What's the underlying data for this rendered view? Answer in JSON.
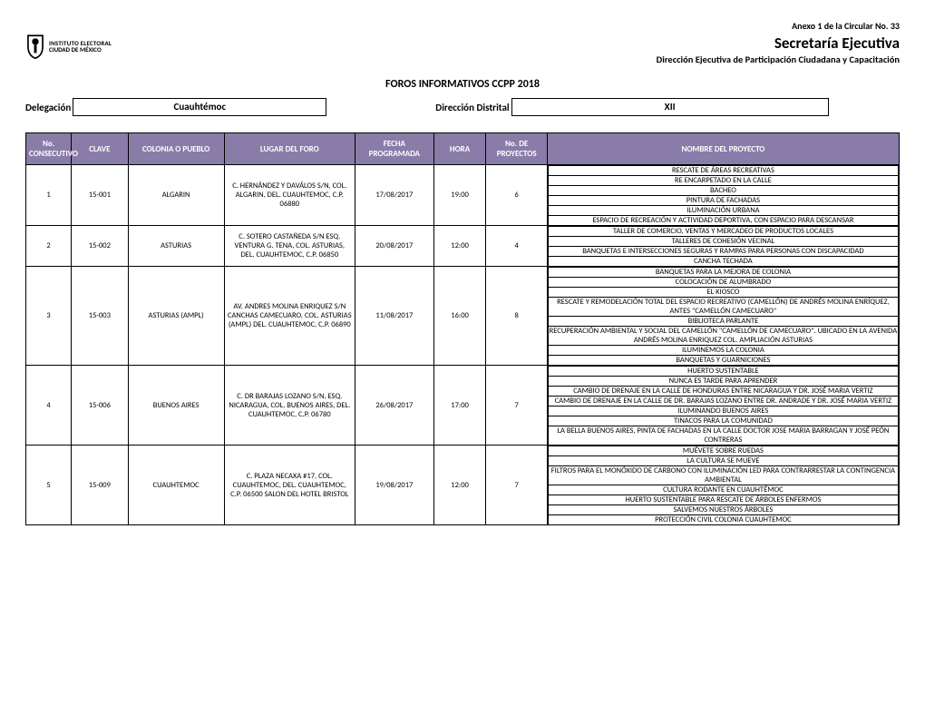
{
  "header": {
    "anexo": "Anexo 1 de la Circular No. 33",
    "secretaria": "Secretaría Ejecutiva",
    "direccion_sub": "Dirección Ejecutiva de Participación Ciudadana y Capacitación",
    "logo_line1": "INSTITUTO ELECTORAL",
    "logo_line2": "CIUDAD DE MÉXICO"
  },
  "titles": {
    "foros": "FOROS INFORMATIVOS CCPP 2018"
  },
  "meta": {
    "delegacion_label": "Delegación",
    "delegacion_value": "Cuauhtémoc",
    "distrito_label": "Dirección Distrital",
    "distrito_value": "XII"
  },
  "columns": {
    "no": "No. CONSECUTIVO",
    "clave": "CLAVE",
    "colonia": "COLONIA O PUEBLO",
    "lugar": "LUGAR DEL FORO",
    "fecha": "FECHA PROGRAMADA",
    "hora": "HORA",
    "nproy": "No. DE PROYECTOS",
    "proy": "NOMBRE DEL PROYECTO"
  },
  "rows": [
    {
      "no": "1",
      "clave": "15-001",
      "colonia": "ALGARIN",
      "lugar": "C. HERNÁNDEZ Y DAVÁLOS S/N, COL. ALGARIN, DEL. CUAUHTEMOC, C.P. 06880",
      "fecha": "17/08/2017",
      "hora": "19:00",
      "nproy": "6",
      "proyectos": [
        "RESCATE DE ÁREAS RECREATIVAS",
        "RE ENCARPETADO EN LA CALLE",
        "BACHEO",
        "PINTURA DE FACHADAS",
        "ILUMINACIÓN URBANA",
        "ESPACIO DE RECREACIÓN Y ACTIVIDAD DEPORTIVA, CON ESPACIO PARA DESCANSAR"
      ]
    },
    {
      "no": "2",
      "clave": "15-002",
      "colonia": "ASTURIAS",
      "lugar": "C. SOTERO CASTAÑEDA S/N ESQ. VENTURA G. TENA, COL. ASTURIAS, DEL. CUAUHTEMOC, C.P. 06850",
      "fecha": "20/08/2017",
      "hora": "12:00",
      "nproy": "4",
      "proyectos": [
        "TALLER DE COMERCIO, VENTAS Y MERCADEO DE PRODUCTOS LOCALES",
        "TALLERES DE COHESIÓN VECINAL",
        "BANQUETAS E INTERSECCIONES SEGURAS Y RAMPAS PARA PERSONAS CON DISCAPACIDAD",
        "CANCHA TECHADA"
      ]
    },
    {
      "no": "3",
      "clave": "15-003",
      "colonia": "ASTURIAS (AMPL)",
      "lugar": "AV. ANDRES MOLINA ENRIQUEZ  S/N CANCHAS CAMECUARO, COL. ASTURIAS (AMPL) DEL. CUAUHTEMOC, C.P. 06890",
      "fecha": "11/08/2017",
      "hora": "16:00",
      "nproy": "8",
      "proyectos": [
        "BANQUETAS PARA LA MEJORA DE COLONIA",
        "COLOCACIÓN DE ALUMBRADO",
        "EL KIOSCO",
        "RESCATE Y REMODELACIÓN TOTAL DEL ESPACIO RECREATIVO (CAMELLÓN) DE ANDRÉS MOLINA ENRÍQUEZ, ANTES \"CAMELLÓN CAMECUARO\"",
        "BIBLIOTECA PARLANTE",
        "RECUPERACIÓN AMBIENTAL Y SOCIAL DEL CAMELLÓN \"CAMELLÓN DE CAMECUARO\". UBICADO EN LA AVENIDA ANDRÉS MOLINA ENRIQUEZ COL. AMPLIACIÓN ASTURIAS",
        "ILUMINEMOS LA COLONIA",
        "BANQUETAS Y GUARNICIONES"
      ]
    },
    {
      "no": "4",
      "clave": "15-006",
      "colonia": "BUENOS AIRES",
      "lugar": "C. DR BARAJAS LOZANO S/N, ESQ. NICARAGUA, COL. BUENOS AIRES, DEL. CUAUHTEMOC, C.P. 06780",
      "fecha": "26/08/2017",
      "hora": "17:00",
      "nproy": "7",
      "proyectos": [
        "HUERTO SUSTENTABLE",
        "NUNCA ES TARDE PARA APRENDER",
        "CAMBIO DE DRENAJE EN LA CALLE DE HONDURAS ENTRE NICARAGUA Y DR. JOSÉ MARIA VERTIZ",
        "CAMBIO DE DRENAJE EN LA CALLE DE DR. BARAJAS LOZANO ENTRE DR. ANDRADE Y DR. JOSÉ MARIA VERTIZ",
        "ILUMINANDO BUENOS AIRES",
        "TINACOS PARA LA COMUNIDAD",
        "LA BELLA BUENOS AIRES, PINTA DE FACHADAS EN LA CALLE DOCTOR JOSE MARIA BARRAGAN Y JOSÉ PEÓN CONTRERAS"
      ]
    },
    {
      "no": "5",
      "clave": "15-009",
      "colonia": "CUAUHTEMOC",
      "lugar": "C. PLAZA NECAXA #17, COL. CUAUHTEMOC, DEL. CUAUHTEMOC, C.P. 06500 SALON DEL HOTEL BRISTOL",
      "fecha": "19/08/2017",
      "hora": "12:00",
      "nproy": "7",
      "proyectos": [
        "MUÉVETE SOBRE RUEDAS",
        "LA CULTURA SE MUEVE",
        "FILTROS PARA EL MONÓXIDO DE CARBONO CON ILUMINACIÓN LED PARA CONTRARRESTAR LA CONTINGENCIA AMBIENTAL",
        "CULTURA RODANTE EN CUAUHTÉMOC",
        "HUERTO SUSTENTABLE PARA RESCATE DE ÁRBOLES ENFERMOS",
        "SALVEMOS NUESTROS ÁRBOLES",
        "PROTECCIÓN CIVIL COLONIA CUAUHTEMOC"
      ]
    }
  ]
}
